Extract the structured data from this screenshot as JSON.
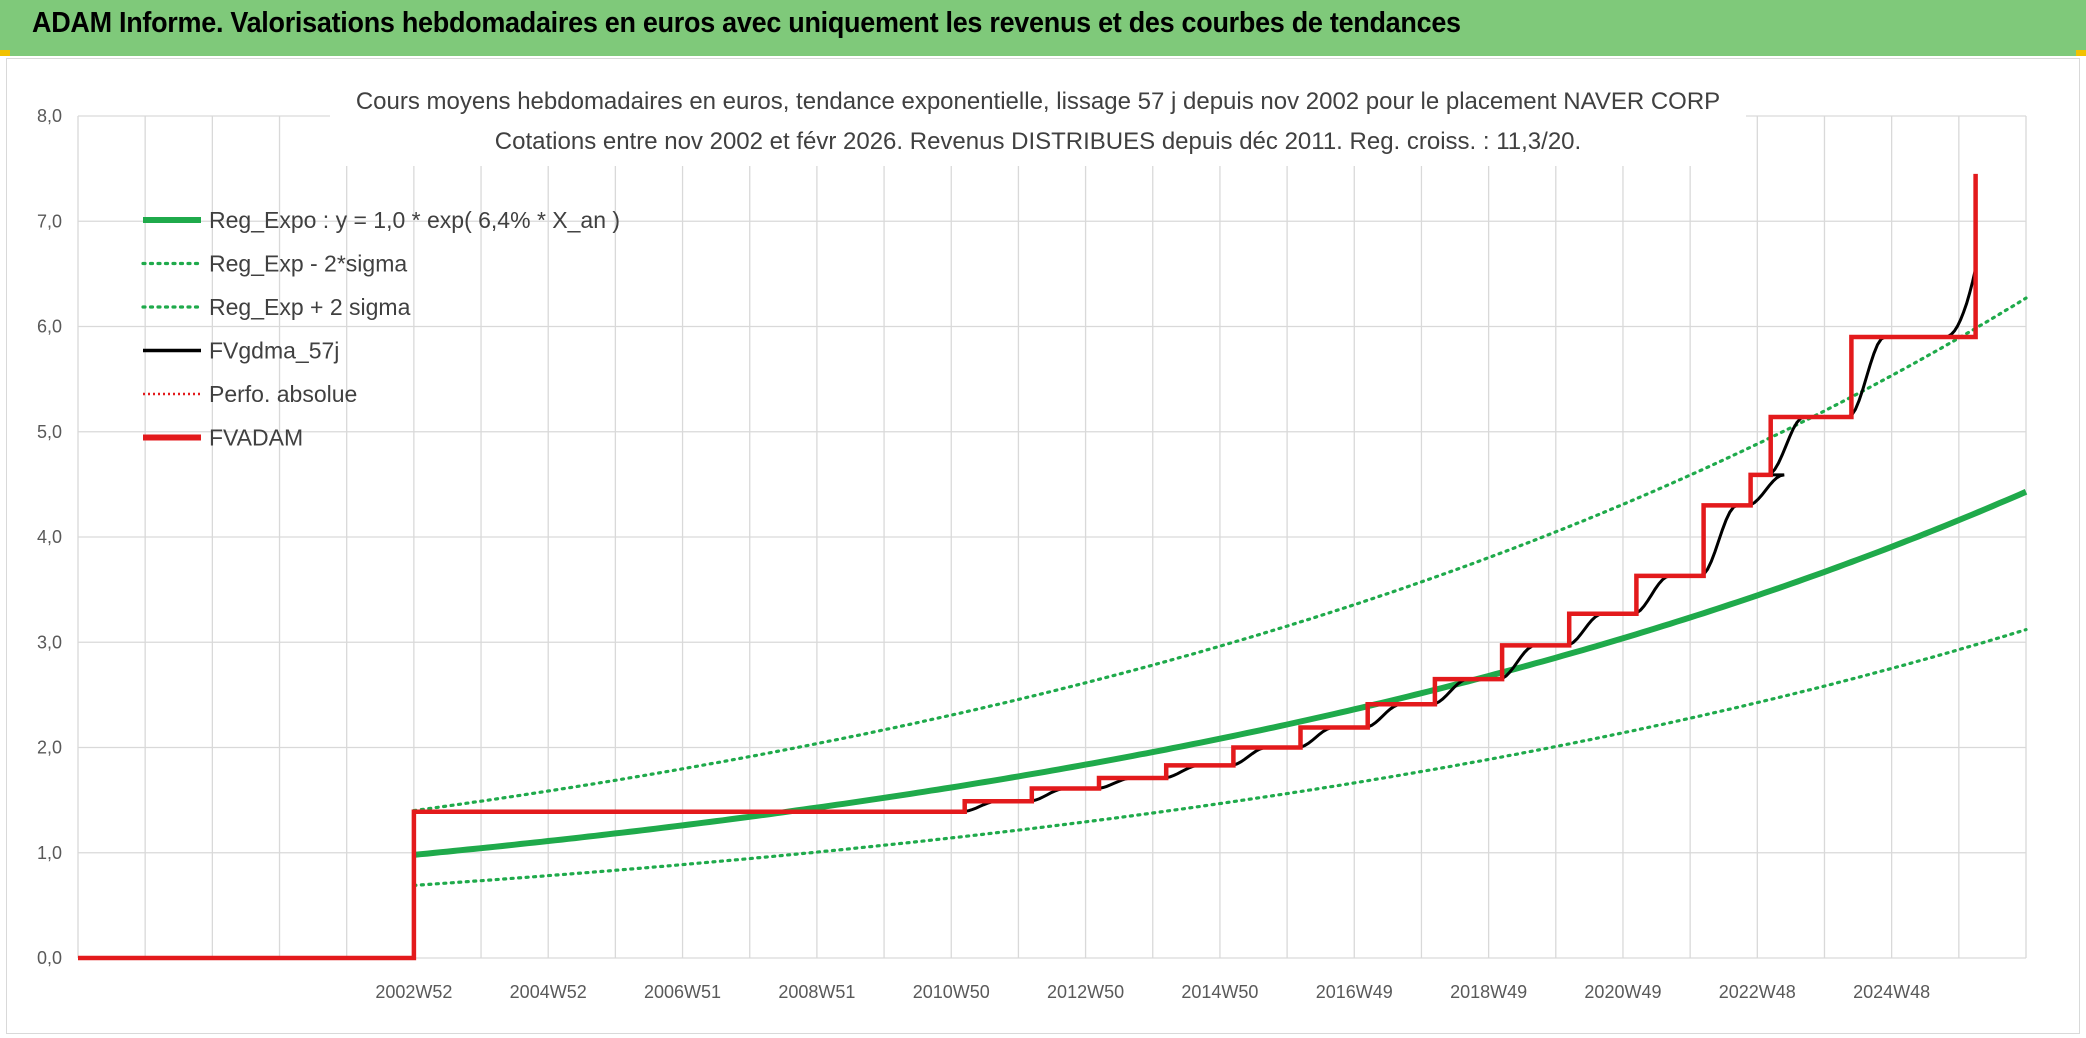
{
  "header": {
    "title": "ADAM Informe. Valorisations hebdomadaires en euros avec uniquement les revenus et des courbes de tendances"
  },
  "colors": {
    "header_bg": "#7fc97a",
    "trend_green": "#1faa4b",
    "red": "#e31a1c",
    "black": "#000000",
    "corner_accent": "#f2c200"
  },
  "chart_data": {
    "type": "line",
    "title_line1": "Cours moyens hebdomadaires en euros, tendance exponentielle, lissage 57 j depuis nov 2002 pour le placement NAVER CORP",
    "title_line2": "Cotations entre nov 2002 et févr 2026. Revenus DISTRIBUES depuis déc 2011. Reg. croiss. : 11,3/20.",
    "ylim": [
      0,
      8
    ],
    "xlim": [
      1997.8,
      2026.8
    ],
    "y_ticks": [
      "0,0",
      "1,0",
      "2,0",
      "3,0",
      "4,0",
      "5,0",
      "6,0",
      "7,0",
      "8,0"
    ],
    "x_ticks": [
      {
        "x": 2002.8,
        "label": "2002W52"
      },
      {
        "x": 2004.8,
        "label": "2004W52"
      },
      {
        "x": 2006.8,
        "label": "2006W51"
      },
      {
        "x": 2008.8,
        "label": "2008W51"
      },
      {
        "x": 2010.8,
        "label": "2010W50"
      },
      {
        "x": 2012.8,
        "label": "2012W50"
      },
      {
        "x": 2014.8,
        "label": "2014W50"
      },
      {
        "x": 2016.8,
        "label": "2016W49"
      },
      {
        "x": 2018.8,
        "label": "2018W49"
      },
      {
        "x": 2020.8,
        "label": "2020W49"
      },
      {
        "x": 2022.8,
        "label": "2022W48"
      },
      {
        "x": 2024.8,
        "label": "2024W48"
      }
    ],
    "grid": true,
    "legend_position": "top-left",
    "legend": [
      {
        "label": "Reg_Expo : y = 1,0 * exp( 6,4% *  X_an )",
        "style": "solid-thick",
        "color": "#1faa4b"
      },
      {
        "label": "Reg_Exp - 2*sigma",
        "style": "dotted",
        "color": "#1faa4b"
      },
      {
        "label": "Reg_Exp + 2 sigma",
        "style": "dotted",
        "color": "#1faa4b"
      },
      {
        "label": "FVgdma_57j",
        "style": "solid",
        "color": "#000000"
      },
      {
        "label": "Perfo. absolue",
        "style": "dotted-thin",
        "color": "#e31a1c"
      },
      {
        "label": "FVADAM",
        "style": "solid-thick",
        "color": "#e31a1c"
      }
    ],
    "series": [
      {
        "name": "Reg_Expo : y = 1,0 * exp( 6,4% *  X_an )",
        "x": [
          2002.8,
          2026.8
        ],
        "y": [
          0.98,
          4.43
        ],
        "kind": "exp"
      },
      {
        "name": "Reg_Exp - 2*sigma",
        "x": [
          2002.8,
          2026.8
        ],
        "y": [
          0.69,
          3.12
        ],
        "kind": "exp"
      },
      {
        "name": "Reg_Exp + 2 sigma",
        "x": [
          2002.8,
          2026.8
        ],
        "y": [
          1.4,
          6.27
        ],
        "kind": "exp"
      },
      {
        "name": "FVADAM",
        "kind": "step",
        "x": [
          1997.8,
          2002.8,
          2011.0,
          2012.0,
          2013.0,
          2014.0,
          2015.0,
          2016.0,
          2017.0,
          2018.0,
          2019.0,
          2020.0,
          2021.0,
          2022.0,
          2022.7,
          2023.0,
          2024.0,
          2025.0,
          2026.0,
          2026.8
        ],
        "y": [
          0.0,
          1.39,
          1.49,
          1.61,
          1.71,
          1.83,
          2.0,
          2.19,
          2.41,
          2.65,
          2.97,
          3.27,
          3.63,
          4.3,
          4.59,
          5.14,
          5.9,
          7.45,
          null,
          null
        ]
      },
      {
        "name": "FVgdma_57j",
        "kind": "smoothed-step",
        "x": [
          1997.8,
          2026.8
        ],
        "y": [
          0.0,
          6.55
        ]
      }
    ]
  }
}
